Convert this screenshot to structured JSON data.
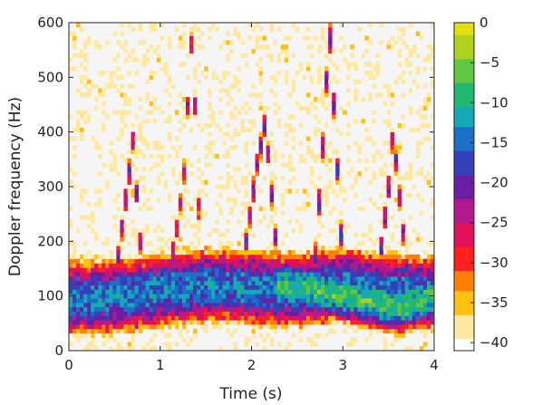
{
  "chart_data": {
    "type": "heatmap",
    "title": "",
    "xlabel": "Time (s)",
    "ylabel": "Doppler frequency (Hz)",
    "xlim": [
      0,
      4
    ],
    "ylim": [
      0,
      600
    ],
    "x_ticks": [
      0,
      1,
      2,
      3,
      4
    ],
    "y_ticks": [
      0,
      100,
      200,
      300,
      400,
      500,
      600
    ],
    "colorbar": {
      "range": [
        -41,
        0
      ],
      "ticks": [
        0,
        -5,
        -10,
        -15,
        -20,
        -25,
        -30,
        -35,
        -40
      ],
      "colormap": [
        "#ffffff",
        "#ffe9a0",
        "#ffc010",
        "#ff8000",
        "#ff2020",
        "#e0105a",
        "#b01a8c",
        "#6a1fa3",
        "#3540b8",
        "#1a70c8",
        "#15a8b8",
        "#20b870",
        "#60c840",
        "#b0d020",
        "#e0e010"
      ],
      "unit_note": ""
    },
    "background_level": -41,
    "components": [
      {
        "t": [
          0.0,
          0.6,
          1.2,
          1.6,
          2.0,
          2.5,
          3.0,
          3.4,
          4.0
        ],
        "f": [
          95,
          100,
          115,
          120,
          115,
          110,
          120,
          110,
          105
        ],
        "peak_db": -14,
        "spread_hz": 45
      },
      {
        "t": [
          0.5,
          0.6,
          0.7,
          0.8
        ],
        "f": [
          120,
          250,
          380,
          150
        ],
        "peak_db": -22,
        "spread_hz": 18
      },
      {
        "t": [
          1.1,
          1.25,
          1.35,
          1.45
        ],
        "f": [
          140,
          300,
          590,
          120
        ],
        "peak_db": -24,
        "spread_hz": 18
      },
      {
        "t": [
          1.9,
          2.05,
          2.15,
          2.3
        ],
        "f": [
          150,
          330,
          420,
          130
        ],
        "peak_db": -22,
        "spread_hz": 20
      },
      {
        "t": [
          2.7,
          2.8,
          2.85,
          3.0
        ],
        "f": [
          170,
          420,
          600,
          150
        ],
        "peak_db": -20,
        "spread_hz": 20
      },
      {
        "t": [
          3.4,
          3.5,
          3.55,
          3.7
        ],
        "f": [
          160,
          300,
          400,
          150
        ],
        "peak_db": -22,
        "spread_hz": 18
      },
      {
        "t": [
          2.3,
          2.8,
          3.2,
          3.6,
          4.0
        ],
        "f": [
          120,
          110,
          95,
          80,
          100
        ],
        "peak_db": -8,
        "spread_hz": 30
      }
    ]
  }
}
